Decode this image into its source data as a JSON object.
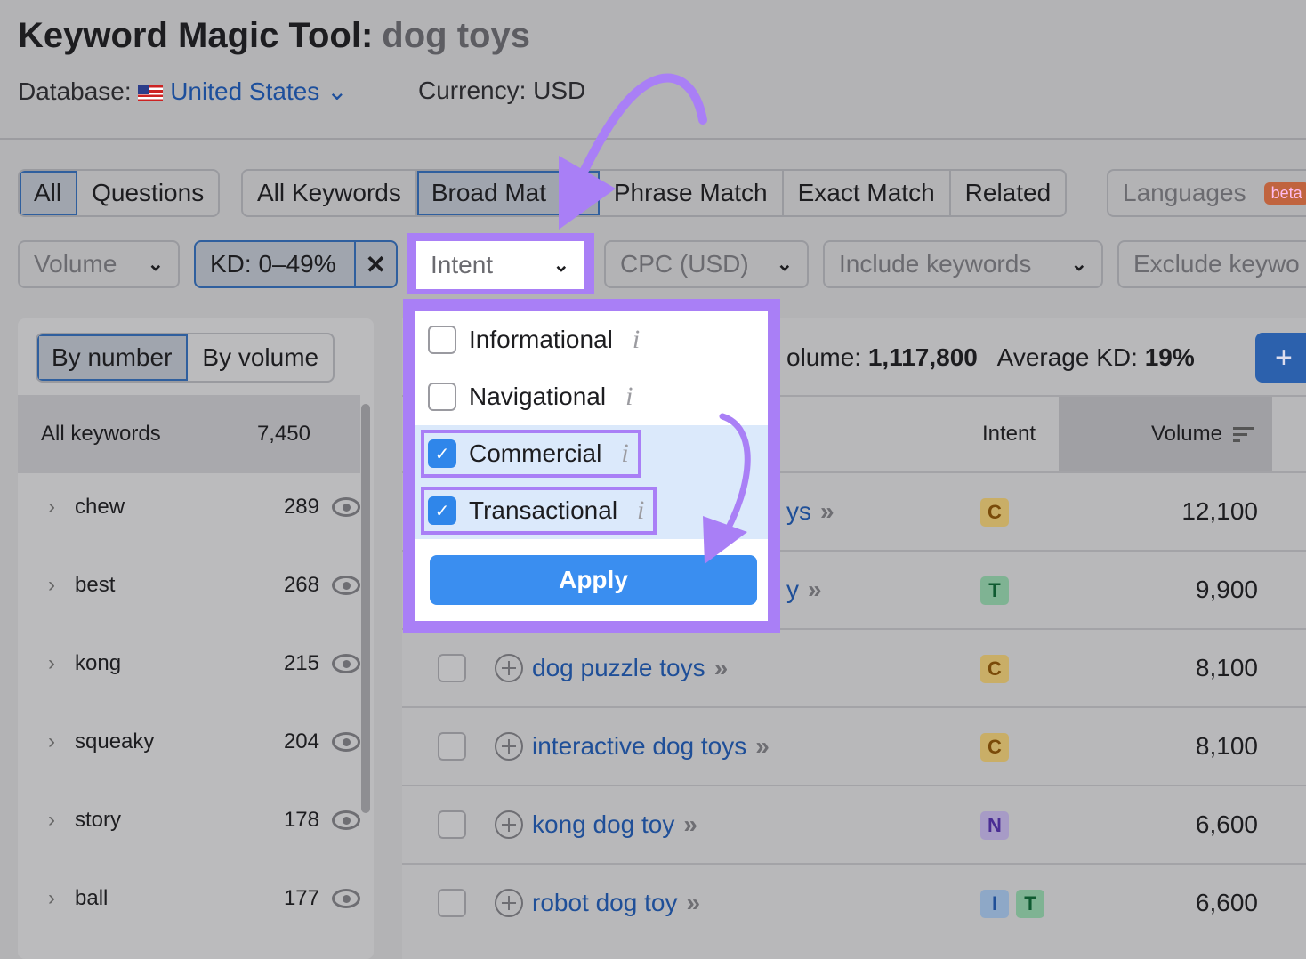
{
  "header": {
    "title": "Keyword Magic Tool:",
    "query": "dog toys",
    "database_label": "Database:",
    "database_value": "United States",
    "currency": "Currency: USD"
  },
  "tabs_type": [
    {
      "label": "All",
      "active": true
    },
    {
      "label": "Questions",
      "active": false
    }
  ],
  "tabs_match": [
    {
      "label": "All Keywords",
      "active": false
    },
    {
      "label": "Broad Mat",
      "active": true
    },
    {
      "label": "Phrase Match",
      "active": false
    },
    {
      "label": "Exact Match",
      "active": false
    },
    {
      "label": "Related",
      "active": false
    }
  ],
  "languages": {
    "label": "Languages",
    "badge": "beta"
  },
  "filters": {
    "volume": "Volume",
    "kd": "KD: 0–49%",
    "intent": "Intent",
    "cpc": "CPC (USD)",
    "include": "Include keywords",
    "exclude": "Exclude keywo"
  },
  "sidebar": {
    "by_number": "By number",
    "by_volume": "By volume",
    "all_label": "All keywords",
    "all_count": "7,450",
    "groups": [
      {
        "label": "chew",
        "count": "289"
      },
      {
        "label": "best",
        "count": "268"
      },
      {
        "label": "kong",
        "count": "215"
      },
      {
        "label": "squeaky",
        "count": "204"
      },
      {
        "label": "story",
        "count": "178"
      },
      {
        "label": "ball",
        "count": "177"
      }
    ]
  },
  "summary": {
    "volume_label": "olume:",
    "volume_value": "1,117,800",
    "kd_label": "Average KD:",
    "kd_value": "19%",
    "add_button": "+"
  },
  "table": {
    "headers": {
      "intent": "Intent",
      "volume": "Volume"
    },
    "rows": [
      {
        "keyword": "ys",
        "intent": [
          "C"
        ],
        "volume": "12,100"
      },
      {
        "keyword": "y",
        "intent": [
          "T"
        ],
        "volume": "9,900"
      },
      {
        "keyword": "dog puzzle toys",
        "intent": [
          "C"
        ],
        "volume": "8,100"
      },
      {
        "keyword": "interactive dog toys",
        "intent": [
          "C"
        ],
        "volume": "8,100"
      },
      {
        "keyword": "kong dog toy",
        "intent": [
          "N"
        ],
        "volume": "6,600"
      },
      {
        "keyword": "robot dog toy",
        "intent": [
          "I",
          "T"
        ],
        "volume": "6,600"
      }
    ]
  },
  "intent_dropdown": {
    "options": [
      {
        "label": "Informational",
        "checked": false
      },
      {
        "label": "Navigational",
        "checked": false
      },
      {
        "label": "Commercial",
        "checked": true
      },
      {
        "label": "Transactional",
        "checked": true
      }
    ],
    "apply": "Apply"
  },
  "colors": {
    "annotation": "#a97ff6",
    "accent": "#3a8ef0",
    "link": "#1f4f98"
  }
}
